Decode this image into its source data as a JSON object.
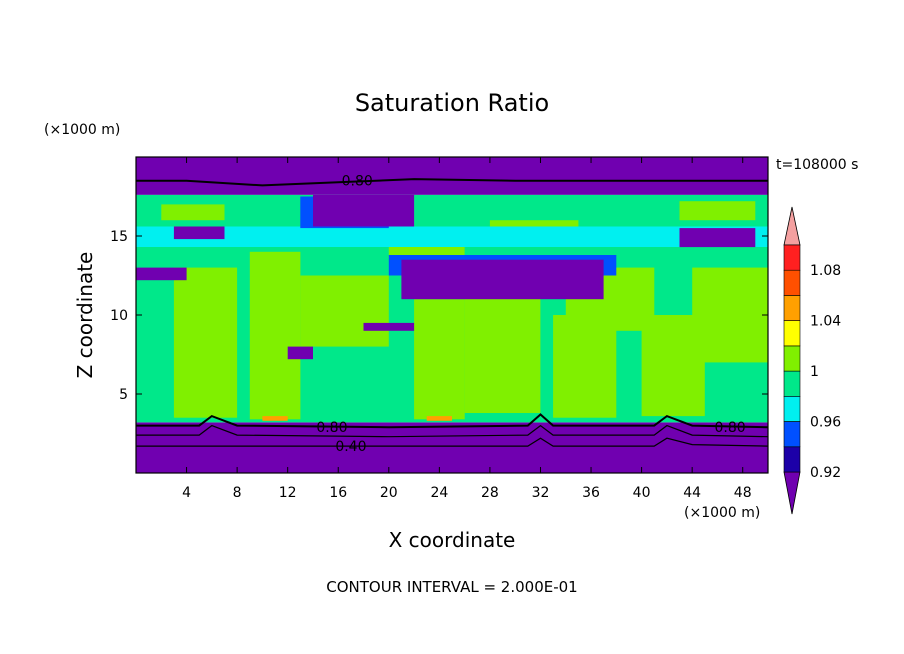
{
  "chart_data": {
    "type": "heatmap",
    "title": "Saturation Ratio",
    "xlabel": "X coordinate",
    "ylabel": "Z coordinate",
    "x_unit": "(×1000 m)",
    "z_unit": "(×1000 m)",
    "time_label": "t=108000 s",
    "footer": "CONTOUR INTERVAL = 2.000E-01",
    "xlim": [
      0,
      50
    ],
    "ylim": [
      0,
      20
    ],
    "x_ticks": [
      4,
      8,
      12,
      16,
      20,
      24,
      28,
      32,
      36,
      40,
      44,
      48
    ],
    "y_ticks": [
      5,
      10,
      15
    ],
    "colorbar": {
      "levels": [
        0.9,
        0.92,
        0.94,
        0.96,
        0.98,
        1.0,
        1.02,
        1.04,
        1.06,
        1.08,
        1.1
      ],
      "tick_labels": [
        "0.92",
        "0.96",
        "1",
        "1.04",
        "1.08"
      ],
      "colors": [
        "#7000b0",
        "#1c00a8",
        "#0050ff",
        "#00f0f0",
        "#00e88a",
        "#80f000",
        "#ffff00",
        "#ffa000",
        "#ff5000",
        "#ff2020",
        "#f4a0a0"
      ]
    },
    "contour_labels": [
      {
        "text": "0.80",
        "x": 17.5,
        "z": 18.5
      },
      {
        "text": "0.80",
        "x": 15.5,
        "z": 2.9
      },
      {
        "text": "0.40",
        "x": 17.0,
        "z": 1.7
      },
      {
        "text": "0.80",
        "x": 47.0,
        "z": 2.9
      }
    ],
    "regions": [
      {
        "level": 0.9,
        "x": [
          0,
          50
        ],
        "z": [
          17.6,
          20
        ]
      },
      {
        "level": 0.9,
        "x": [
          0,
          50
        ],
        "z": [
          0,
          3.2
        ]
      },
      {
        "level": 0.98,
        "x": [
          0,
          50
        ],
        "z": [
          3.2,
          17.6
        ]
      },
      {
        "level": 1.0,
        "x": [
          3,
          8
        ],
        "z": [
          3.5,
          13
        ]
      },
      {
        "level": 1.0,
        "x": [
          9,
          13
        ],
        "z": [
          3.4,
          14
        ]
      },
      {
        "level": 1.0,
        "x": [
          13,
          20
        ],
        "z": [
          8,
          12.5
        ]
      },
      {
        "level": 1.0,
        "x": [
          22,
          26
        ],
        "z": [
          3.4,
          11
        ]
      },
      {
        "level": 1.0,
        "x": [
          26,
          32
        ],
        "z": [
          3.8,
          13
        ]
      },
      {
        "level": 1.0,
        "x": [
          33,
          38
        ],
        "z": [
          3.5,
          10
        ]
      },
      {
        "level": 1.0,
        "x": [
          34,
          41
        ],
        "z": [
          9,
          13
        ]
      },
      {
        "level": 1.0,
        "x": [
          40,
          45
        ],
        "z": [
          3.6,
          10
        ]
      },
      {
        "level": 1.0,
        "x": [
          44,
          50
        ],
        "z": [
          7,
          13
        ]
      },
      {
        "level": 1.0,
        "x": [
          2,
          7
        ],
        "z": [
          16,
          17
        ]
      },
      {
        "level": 1.0,
        "x": [
          43,
          49
        ],
        "z": [
          16,
          17.2
        ]
      },
      {
        "level": 1.0,
        "x": [
          20,
          26
        ],
        "z": [
          13.6,
          15.2
        ]
      },
      {
        "level": 1.0,
        "x": [
          28,
          35
        ],
        "z": [
          14.5,
          16
        ]
      },
      {
        "level": 0.96,
        "x": [
          0,
          50
        ],
        "z": [
          14.3,
          15.6
        ]
      },
      {
        "level": 0.94,
        "x": [
          13,
          20
        ],
        "z": [
          15.5,
          17.5
        ]
      },
      {
        "level": 0.9,
        "x": [
          14,
          22
        ],
        "z": [
          15.6,
          17.6
        ]
      },
      {
        "level": 0.9,
        "x": [
          3,
          7
        ],
        "z": [
          14.8,
          15.6
        ]
      },
      {
        "level": 0.9,
        "x": [
          43,
          49
        ],
        "z": [
          14.3,
          15.5
        ]
      },
      {
        "level": 0.94,
        "x": [
          20,
          38
        ],
        "z": [
          12.5,
          13.8
        ]
      },
      {
        "level": 0.9,
        "x": [
          21,
          37
        ],
        "z": [
          11,
          13.5
        ]
      },
      {
        "level": 0.9,
        "x": [
          0,
          4
        ],
        "z": [
          12.2,
          13
        ]
      },
      {
        "level": 0.9,
        "x": [
          12,
          14
        ],
        "z": [
          7.2,
          8
        ]
      },
      {
        "level": 0.9,
        "x": [
          18,
          22
        ],
        "z": [
          9,
          9.5
        ]
      },
      {
        "level": 1.04,
        "x": [
          10,
          12
        ],
        "z": [
          3.3,
          3.6
        ]
      },
      {
        "level": 1.04,
        "x": [
          23,
          25
        ],
        "z": [
          3.3,
          3.6
        ]
      }
    ],
    "contours": [
      {
        "level": 0.8,
        "x": [
          0,
          4,
          10,
          16,
          22,
          30,
          40,
          50
        ],
        "z": [
          18.5,
          18.5,
          18.2,
          18.4,
          18.6,
          18.5,
          18.5,
          18.5
        ]
      },
      {
        "level": 0.8,
        "x": [
          0,
          5,
          6,
          8,
          20,
          31,
          32,
          33,
          41,
          42,
          44,
          50
        ],
        "z": [
          3.0,
          3.0,
          3.6,
          3.0,
          2.9,
          3.0,
          3.7,
          3.0,
          3.0,
          3.6,
          3.0,
          2.9
        ]
      },
      {
        "level": 0.6,
        "x": [
          0,
          5,
          6,
          8,
          20,
          31,
          32,
          33,
          41,
          42,
          44,
          50
        ],
        "z": [
          2.4,
          2.4,
          3.0,
          2.4,
          2.3,
          2.4,
          3.0,
          2.4,
          2.4,
          3.0,
          2.4,
          2.3
        ]
      },
      {
        "level": 0.4,
        "x": [
          0,
          10,
          20,
          31,
          32,
          33,
          41,
          42,
          44,
          50
        ],
        "z": [
          1.7,
          1.7,
          1.7,
          1.7,
          2.2,
          1.7,
          1.7,
          2.2,
          1.8,
          1.7
        ]
      }
    ]
  }
}
